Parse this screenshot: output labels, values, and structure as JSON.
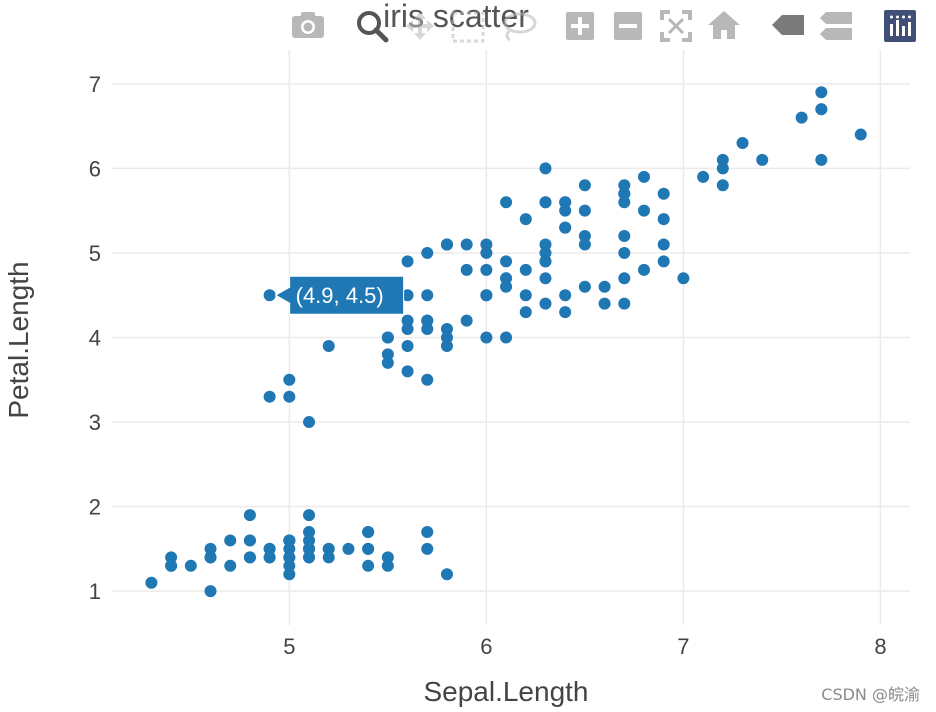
{
  "chart_data": {
    "type": "scatter",
    "title": "iris scatter",
    "xlabel": "Sepal.Length",
    "ylabel": "Petal.Length",
    "xlim": [
      4.1,
      8.15
    ],
    "ylim": [
      0.6,
      7.4
    ],
    "xticks": [
      5,
      6,
      7,
      8
    ],
    "yticks": [
      1,
      2,
      3,
      4,
      5,
      6,
      7
    ],
    "grid": true,
    "marker_color": "#1f77b4",
    "series": [
      {
        "x": [
          5.1,
          4.9,
          4.7,
          4.6,
          5.0,
          5.4,
          4.6,
          5.0,
          4.4,
          4.9,
          5.4,
          4.8,
          4.8,
          4.3,
          5.8,
          5.7,
          5.4,
          5.1,
          5.7,
          5.1,
          5.4,
          5.1,
          4.6,
          5.1,
          4.8,
          5.0,
          5.0,
          5.2,
          5.2,
          4.7,
          4.8,
          5.4,
          5.2,
          5.5,
          4.9,
          5.0,
          5.5,
          4.9,
          4.4,
          5.1,
          5.0,
          4.5,
          4.4,
          5.0,
          5.1,
          4.8,
          5.1,
          4.6,
          5.3,
          5.0,
          7.0,
          6.4,
          6.9,
          5.5,
          6.5,
          5.7,
          6.3,
          4.9,
          6.6,
          5.2,
          5.0,
          5.9,
          6.0,
          6.1,
          5.6,
          6.7,
          5.6,
          5.8,
          6.2,
          5.6,
          5.9,
          6.1,
          6.3,
          6.1,
          6.4,
          6.6,
          6.8,
          6.7,
          6.0,
          5.7,
          5.5,
          5.5,
          5.8,
          6.0,
          5.4,
          6.0,
          6.7,
          6.3,
          5.6,
          5.5,
          5.5,
          6.1,
          5.8,
          5.0,
          5.6,
          5.7,
          5.7,
          6.2,
          5.1,
          5.7,
          6.3,
          5.8,
          7.1,
          6.3,
          6.5,
          7.6,
          4.9,
          7.3,
          6.7,
          7.2,
          6.5,
          6.4,
          6.8,
          5.7,
          5.8,
          6.4,
          6.5,
          7.7,
          7.7,
          6.0,
          6.9,
          5.6,
          7.7,
          6.3,
          6.7,
          7.2,
          6.2,
          6.1,
          6.4,
          7.2,
          7.4,
          7.9,
          6.4,
          6.3,
          6.1,
          7.7,
          6.3,
          6.4,
          6.0,
          6.9,
          6.7,
          6.9,
          5.8,
          6.8,
          6.7,
          6.7,
          6.3,
          6.5,
          6.2,
          5.9
        ],
        "y": [
          1.4,
          1.4,
          1.3,
          1.5,
          1.4,
          1.7,
          1.4,
          1.5,
          1.4,
          1.5,
          1.5,
          1.6,
          1.4,
          1.1,
          1.2,
          1.5,
          1.3,
          1.4,
          1.7,
          1.5,
          1.7,
          1.5,
          1.0,
          1.7,
          1.9,
          1.6,
          1.6,
          1.5,
          1.4,
          1.6,
          1.6,
          1.5,
          1.5,
          1.4,
          1.5,
          1.2,
          1.3,
          1.4,
          1.3,
          1.5,
          1.3,
          1.3,
          1.3,
          1.6,
          1.9,
          1.4,
          1.6,
          1.4,
          1.5,
          1.4,
          4.7,
          4.5,
          4.9,
          4.0,
          4.6,
          4.5,
          4.7,
          3.3,
          4.6,
          3.9,
          3.5,
          4.2,
          4.0,
          4.7,
          3.6,
          4.4,
          4.5,
          4.1,
          4.5,
          3.9,
          4.8,
          4.0,
          4.9,
          4.7,
          4.3,
          4.4,
          4.8,
          5.0,
          4.5,
          3.5,
          3.8,
          3.7,
          3.9,
          5.1,
          4.5,
          4.5,
          4.7,
          4.4,
          4.1,
          4.0,
          4.4,
          4.6,
          4.0,
          3.3,
          4.2,
          4.2,
          4.2,
          4.3,
          3.0,
          4.1,
          6.0,
          5.1,
          5.9,
          5.6,
          5.8,
          6.6,
          4.5,
          6.3,
          5.8,
          6.1,
          5.1,
          5.3,
          5.5,
          5.0,
          5.1,
          5.3,
          5.5,
          6.7,
          6.9,
          5.0,
          5.7,
          4.9,
          6.7,
          4.9,
          5.7,
          6.0,
          4.8,
          4.9,
          5.6,
          5.8,
          6.1,
          6.4,
          5.6,
          5.1,
          5.6,
          6.1,
          5.6,
          5.5,
          4.8,
          5.4,
          5.6,
          5.1,
          5.1,
          5.9,
          5.7,
          5.2,
          5.0,
          5.2,
          5.4,
          5.1
        ]
      }
    ],
    "hover": {
      "label": "(4.9, 4.5)",
      "x": 4.9,
      "y": 4.5
    }
  },
  "modebar": {
    "buttons": [
      "camera-icon",
      "zoom-icon",
      "pan-icon",
      "box-select-icon",
      "lasso-icon",
      "zoom-in-icon",
      "zoom-out-icon",
      "autoscale-icon",
      "reset-axes-icon",
      "hover-closest-icon",
      "hover-compare-icon",
      "plotly-logo-icon"
    ]
  },
  "watermark": "CSDN @皖渝"
}
